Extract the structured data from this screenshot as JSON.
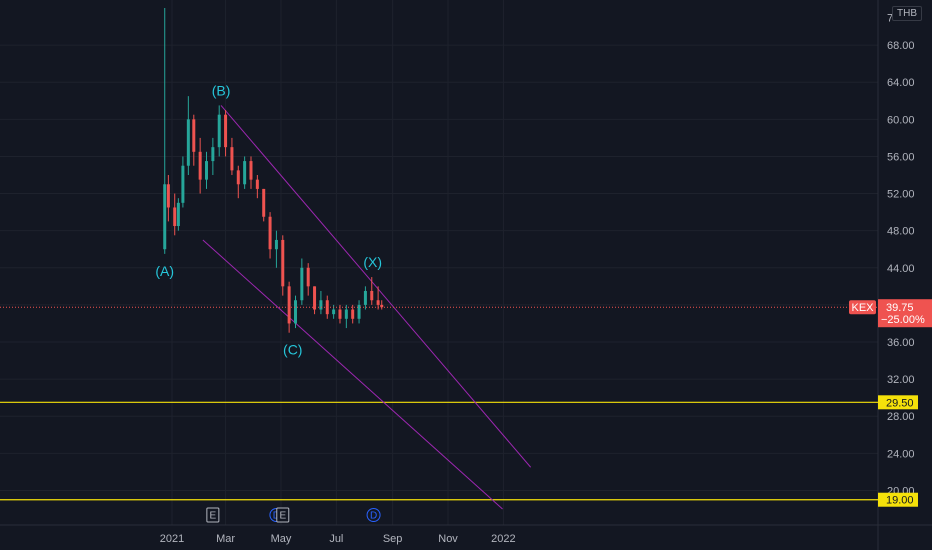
{
  "currency_label": "THB",
  "price_axis": {
    "top_label": "7",
    "ticks": [
      "68.00",
      "64.00",
      "60.00",
      "56.00",
      "52.00",
      "48.00",
      "44.00",
      "40.00",
      "36.00",
      "32.00",
      "28.00",
      "24.00",
      "20.00"
    ]
  },
  "time_axis": {
    "ticks": [
      "2021",
      "Mar",
      "May",
      "Jul",
      "Sep",
      "Nov",
      "2022"
    ]
  },
  "wave_labels": [
    "(A)",
    "(B)",
    "(C)",
    "(X)"
  ],
  "symbol_tag": {
    "symbol": "KEX",
    "price": "39.75",
    "change": "−25.00%"
  },
  "levels": [
    {
      "label": "29.50",
      "value": 29.5,
      "color": "#f5e10a"
    },
    {
      "label": "19.00",
      "value": 19.0,
      "color": "#f5e10a"
    }
  ],
  "event_markers": [
    {
      "letter": "E",
      "kind": "earnings"
    },
    {
      "letter": "D",
      "kind": "dividend"
    },
    {
      "letter": "E",
      "kind": "earnings"
    },
    {
      "letter": "D",
      "kind": "dividend"
    }
  ],
  "colors": {
    "up": "#26a69a",
    "down": "#ef5350",
    "channel": "#9c27b0",
    "level": "#f5e10a",
    "wave_text": "#26c6da",
    "background": "#131722"
  },
  "chart_data": {
    "type": "candlestick",
    "ylim": [
      18,
      72
    ],
    "xlim": [
      "2020-11-15",
      "2022-01-31"
    ],
    "spike_high": 72,
    "series": [
      {
        "values": [
          [
            "2020-12-24",
            46.0,
            72.0,
            45.5,
            53.0
          ],
          [
            "2020-12-28",
            53.0,
            54.0,
            49.0,
            50.5
          ],
          [
            "2021-01-04",
            50.5,
            52.0,
            47.5,
            48.5
          ],
          [
            "2021-01-08",
            48.5,
            51.5,
            48.0,
            51.0
          ],
          [
            "2021-01-13",
            51.0,
            56.0,
            50.5,
            55.0
          ],
          [
            "2021-01-19",
            55.0,
            62.5,
            54.0,
            60.0
          ],
          [
            "2021-01-25",
            60.0,
            60.5,
            55.0,
            56.5
          ],
          [
            "2021-02-01",
            56.5,
            58.0,
            52.0,
            53.5
          ],
          [
            "2021-02-08",
            53.5,
            56.5,
            52.5,
            55.5
          ],
          [
            "2021-02-15",
            55.5,
            58.0,
            54.0,
            57.0
          ],
          [
            "2021-02-22",
            57.0,
            61.5,
            56.0,
            60.5
          ],
          [
            "2021-03-01",
            60.5,
            61.0,
            56.0,
            57.0
          ],
          [
            "2021-03-08",
            57.0,
            58.0,
            54.0,
            54.5
          ],
          [
            "2021-03-15",
            54.5,
            55.0,
            51.5,
            53.0
          ],
          [
            "2021-03-22",
            53.0,
            56.0,
            52.5,
            55.5
          ],
          [
            "2021-03-29",
            55.5,
            56.0,
            52.5,
            53.5
          ],
          [
            "2021-04-05",
            53.5,
            54.0,
            51.5,
            52.5
          ],
          [
            "2021-04-12",
            52.5,
            52.5,
            49.0,
            49.5
          ],
          [
            "2021-04-19",
            49.5,
            50.0,
            45.0,
            46.0
          ],
          [
            "2021-04-26",
            46.0,
            48.0,
            44.0,
            47.0
          ],
          [
            "2021-05-03",
            47.0,
            47.5,
            41.0,
            42.0
          ],
          [
            "2021-05-10",
            42.0,
            42.5,
            37.0,
            38.0
          ],
          [
            "2021-05-17",
            38.0,
            41.0,
            37.5,
            40.5
          ],
          [
            "2021-05-24",
            40.5,
            45.0,
            40.0,
            44.0
          ],
          [
            "2021-05-31",
            44.0,
            44.5,
            41.0,
            42.0
          ],
          [
            "2021-06-07",
            42.0,
            42.0,
            39.0,
            39.5
          ],
          [
            "2021-06-14",
            39.5,
            41.5,
            39.0,
            40.5
          ],
          [
            "2021-06-21",
            40.5,
            41.0,
            38.5,
            39.0
          ],
          [
            "2021-06-28",
            39.0,
            40.0,
            38.5,
            39.5
          ],
          [
            "2021-07-05",
            39.5,
            40.0,
            38.0,
            38.5
          ],
          [
            "2021-07-12",
            38.5,
            40.0,
            37.5,
            39.5
          ],
          [
            "2021-07-19",
            39.5,
            40.0,
            38.0,
            38.5
          ],
          [
            "2021-07-26",
            38.5,
            40.5,
            38.0,
            40.0
          ],
          [
            "2021-08-02",
            40.0,
            42.0,
            39.5,
            41.5
          ],
          [
            "2021-08-09",
            41.5,
            43.0,
            40.0,
            40.5
          ],
          [
            "2021-08-16",
            40.5,
            42.0,
            39.5,
            40.0
          ],
          [
            "2021-08-20",
            40.0,
            40.5,
            39.5,
            39.75
          ]
        ]
      }
    ],
    "channel": {
      "upper": [
        [
          "2021-02-24",
          61.5
        ],
        [
          "2022-01-31",
          22.5
        ]
      ],
      "lower": [
        [
          "2021-02-04",
          47.0
        ],
        [
          "2021-12-31",
          18.0
        ]
      ]
    },
    "wave_points": [
      {
        "label": "(A)",
        "date": "2020-12-24",
        "value": 45.5,
        "place": "below"
      },
      {
        "label": "(B)",
        "date": "2021-02-24",
        "value": 61.5,
        "place": "above"
      },
      {
        "label": "(C)",
        "date": "2021-05-14",
        "value": 37.0,
        "place": "below"
      },
      {
        "label": "(X)",
        "date": "2021-08-10",
        "value": 43.0,
        "place": "above"
      }
    ],
    "current_price": 39.75,
    "marker_dates": [
      "2021-02-15",
      "2021-04-26",
      "2021-05-03",
      "2021-08-11"
    ]
  }
}
